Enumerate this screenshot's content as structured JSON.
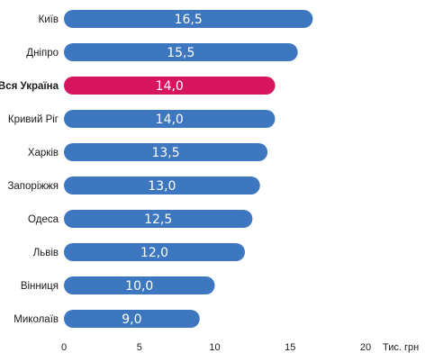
{
  "chart_data": {
    "type": "bar",
    "orientation": "horizontal",
    "categories": [
      "Київ",
      "Дніпро",
      "Вся Україна",
      "Кривий Ріг",
      "Харків",
      "Запоріжжя",
      "Одеса",
      "Львів",
      "Вінниця",
      "Миколаїв"
    ],
    "values": [
      16.5,
      15.5,
      14.0,
      14.0,
      13.5,
      13.0,
      12.5,
      12.0,
      10.0,
      9.0
    ],
    "value_labels": [
      "16,5",
      "15,5",
      "14,0",
      "14,0",
      "13,5",
      "13,0",
      "12,5",
      "12,0",
      "10,0",
      "9,0"
    ],
    "highlight_category": "Вся Україна",
    "x_ticks": [
      "0",
      "5",
      "10",
      "15",
      "20"
    ],
    "x_tick_values": [
      0,
      5,
      10,
      15,
      20
    ],
    "xlim": [
      0,
      20
    ],
    "x_unit": "Тис. грн",
    "grid": false,
    "colors": {
      "bar": "#3d77bf",
      "highlight": "#d6155e",
      "label": "#ffffff"
    }
  }
}
